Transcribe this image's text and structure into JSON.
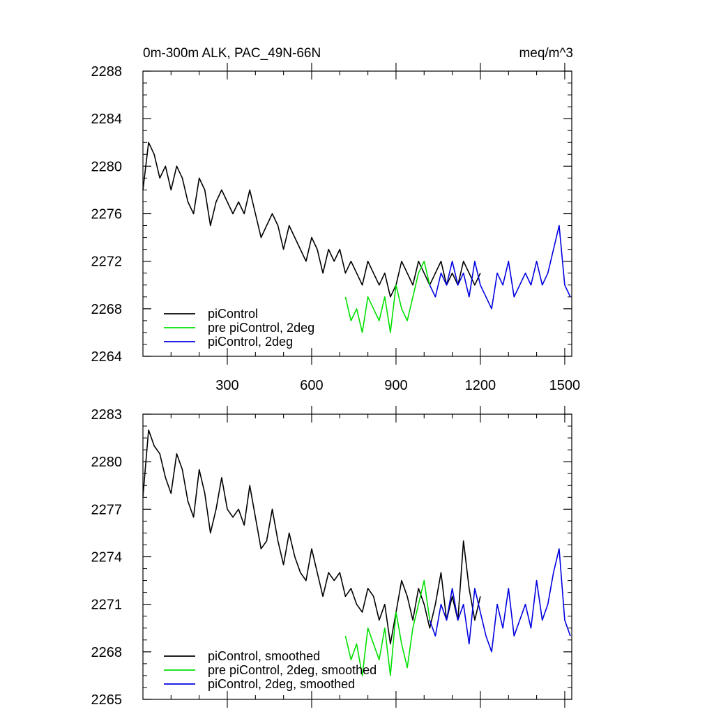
{
  "chart_data": [
    {
      "type": "line",
      "title_left": "0m-300m ALK, PAC_49N-66N",
      "title_right": "meq/m^3",
      "xlim": [
        0,
        1525
      ],
      "ylim": [
        2264,
        2288
      ],
      "yticks": [
        "2264",
        "2268",
        "2272",
        "2276",
        "2280",
        "2284",
        "2288"
      ],
      "xticks": [
        "300",
        "600",
        "900",
        "1200",
        "1500"
      ],
      "legend_position": "bottom-left",
      "series": [
        {
          "name": "piControl",
          "color": "#000000",
          "x": [
            0,
            20,
            40,
            60,
            80,
            100,
            120,
            140,
            160,
            180,
            200,
            220,
            240,
            260,
            280,
            300,
            320,
            340,
            360,
            380,
            400,
            420,
            440,
            460,
            480,
            500,
            520,
            540,
            560,
            580,
            600,
            620,
            640,
            660,
            680,
            700,
            720,
            740,
            760,
            780,
            800,
            820,
            840,
            860,
            880,
            900,
            920,
            940,
            960,
            980,
            1000,
            1020,
            1040,
            1060,
            1080,
            1100,
            1120,
            1140,
            1160,
            1180,
            1200
          ],
          "y": [
            2278,
            2282,
            2281,
            2279,
            2280,
            2278,
            2280,
            2279,
            2277,
            2276,
            2279,
            2278,
            2275,
            2277,
            2278,
            2277,
            2276,
            2277,
            2276,
            2278,
            2276,
            2274,
            2275,
            2276,
            2275,
            2273,
            2275,
            2274,
            2273,
            2272,
            2274,
            2273,
            2271,
            2273,
            2272,
            2273,
            2271,
            2272,
            2271,
            2270,
            2272,
            2271,
            2270,
            2271,
            2269,
            2270,
            2272,
            2271,
            2270,
            2272,
            2271,
            2270,
            2271,
            2272,
            2270,
            2271,
            2270,
            2272,
            2271,
            2270,
            2271
          ]
        },
        {
          "name": "pre piControl, 2deg",
          "color": "#00e000",
          "x": [
            720,
            740,
            760,
            780,
            800,
            820,
            840,
            860,
            880,
            900,
            920,
            940,
            960,
            980,
            1000,
            1020
          ],
          "y": [
            2269,
            2267,
            2268,
            2266,
            2269,
            2268,
            2267,
            2269,
            2266,
            2270,
            2268,
            2267,
            2269,
            2271,
            2272,
            2270
          ]
        },
        {
          "name": "piControl, 2deg",
          "color": "#0000e0",
          "x": [
            1020,
            1040,
            1060,
            1080,
            1100,
            1120,
            1140,
            1160,
            1180,
            1200,
            1220,
            1240,
            1260,
            1280,
            1300,
            1320,
            1340,
            1360,
            1380,
            1400,
            1420,
            1440,
            1460,
            1480,
            1500,
            1520
          ],
          "y": [
            2270,
            2269,
            2271,
            2270,
            2272,
            2270,
            2271,
            2269,
            2272,
            2270,
            2269,
            2268,
            2271,
            2270,
            2272,
            2269,
            2270,
            2271,
            2270,
            2272,
            2270,
            2271,
            2273,
            2275,
            2270,
            2269
          ]
        }
      ]
    },
    {
      "type": "line",
      "xlim": [
        0,
        1525
      ],
      "ylim": [
        2265,
        2283
      ],
      "yticks": [
        "2265",
        "2268",
        "2271",
        "2274",
        "2277",
        "2280",
        "2283"
      ],
      "legend_position": "bottom-left",
      "series": [
        {
          "name": "piControl, smoothed",
          "color": "#000000",
          "x": [
            0,
            20,
            40,
            60,
            80,
            100,
            120,
            140,
            160,
            180,
            200,
            220,
            240,
            260,
            280,
            300,
            320,
            340,
            360,
            380,
            400,
            420,
            440,
            460,
            480,
            500,
            520,
            540,
            560,
            580,
            600,
            620,
            640,
            660,
            680,
            700,
            720,
            740,
            760,
            780,
            800,
            820,
            840,
            860,
            880,
            900,
            920,
            940,
            960,
            980,
            1000,
            1020,
            1040,
            1060,
            1080,
            1100,
            1120,
            1140,
            1160,
            1180,
            1200
          ],
          "y": [
            2277.8,
            2282,
            2281,
            2280.5,
            2279,
            2278,
            2280.5,
            2279.5,
            2277.5,
            2276.5,
            2279.5,
            2278,
            2275.5,
            2277,
            2279,
            2277,
            2276.5,
            2277,
            2276,
            2278.5,
            2276.5,
            2274.5,
            2275,
            2277,
            2275,
            2273.5,
            2275.5,
            2274,
            2273,
            2272.5,
            2274.5,
            2273,
            2271.5,
            2273,
            2272.5,
            2273,
            2271.5,
            2272,
            2271,
            2270.5,
            2272,
            2271.5,
            2270,
            2271,
            2268.5,
            2270.5,
            2272.5,
            2271.5,
            2270,
            2272,
            2271,
            2269.5,
            2271,
            2273,
            2270,
            2271.5,
            2270,
            2275,
            2272,
            2270,
            2271.5
          ]
        },
        {
          "name": "pre piControl, 2deg, smoothed",
          "color": "#00e000",
          "x": [
            720,
            740,
            760,
            780,
            800,
            820,
            840,
            860,
            880,
            900,
            920,
            940,
            960,
            980,
            1000,
            1020
          ],
          "y": [
            2269,
            2267.5,
            2268.5,
            2266.5,
            2269.5,
            2268.5,
            2267.5,
            2269.5,
            2266.5,
            2270.5,
            2268.5,
            2267,
            2269.5,
            2271,
            2272.5,
            2270
          ]
        },
        {
          "name": "piControl, 2deg, smoothed",
          "color": "#0000e0",
          "x": [
            1020,
            1040,
            1060,
            1080,
            1100,
            1120,
            1140,
            1160,
            1180,
            1200,
            1220,
            1240,
            1260,
            1280,
            1300,
            1320,
            1340,
            1360,
            1380,
            1400,
            1420,
            1440,
            1460,
            1480,
            1500,
            1520
          ],
          "y": [
            2270,
            2269,
            2271,
            2270,
            2272,
            2270,
            2271,
            2268.5,
            2272,
            2270.5,
            2269,
            2268,
            2271,
            2269.5,
            2272,
            2269,
            2270,
            2271,
            2269.5,
            2272.5,
            2270,
            2271,
            2273,
            2274.5,
            2270,
            2269
          ]
        }
      ]
    }
  ]
}
